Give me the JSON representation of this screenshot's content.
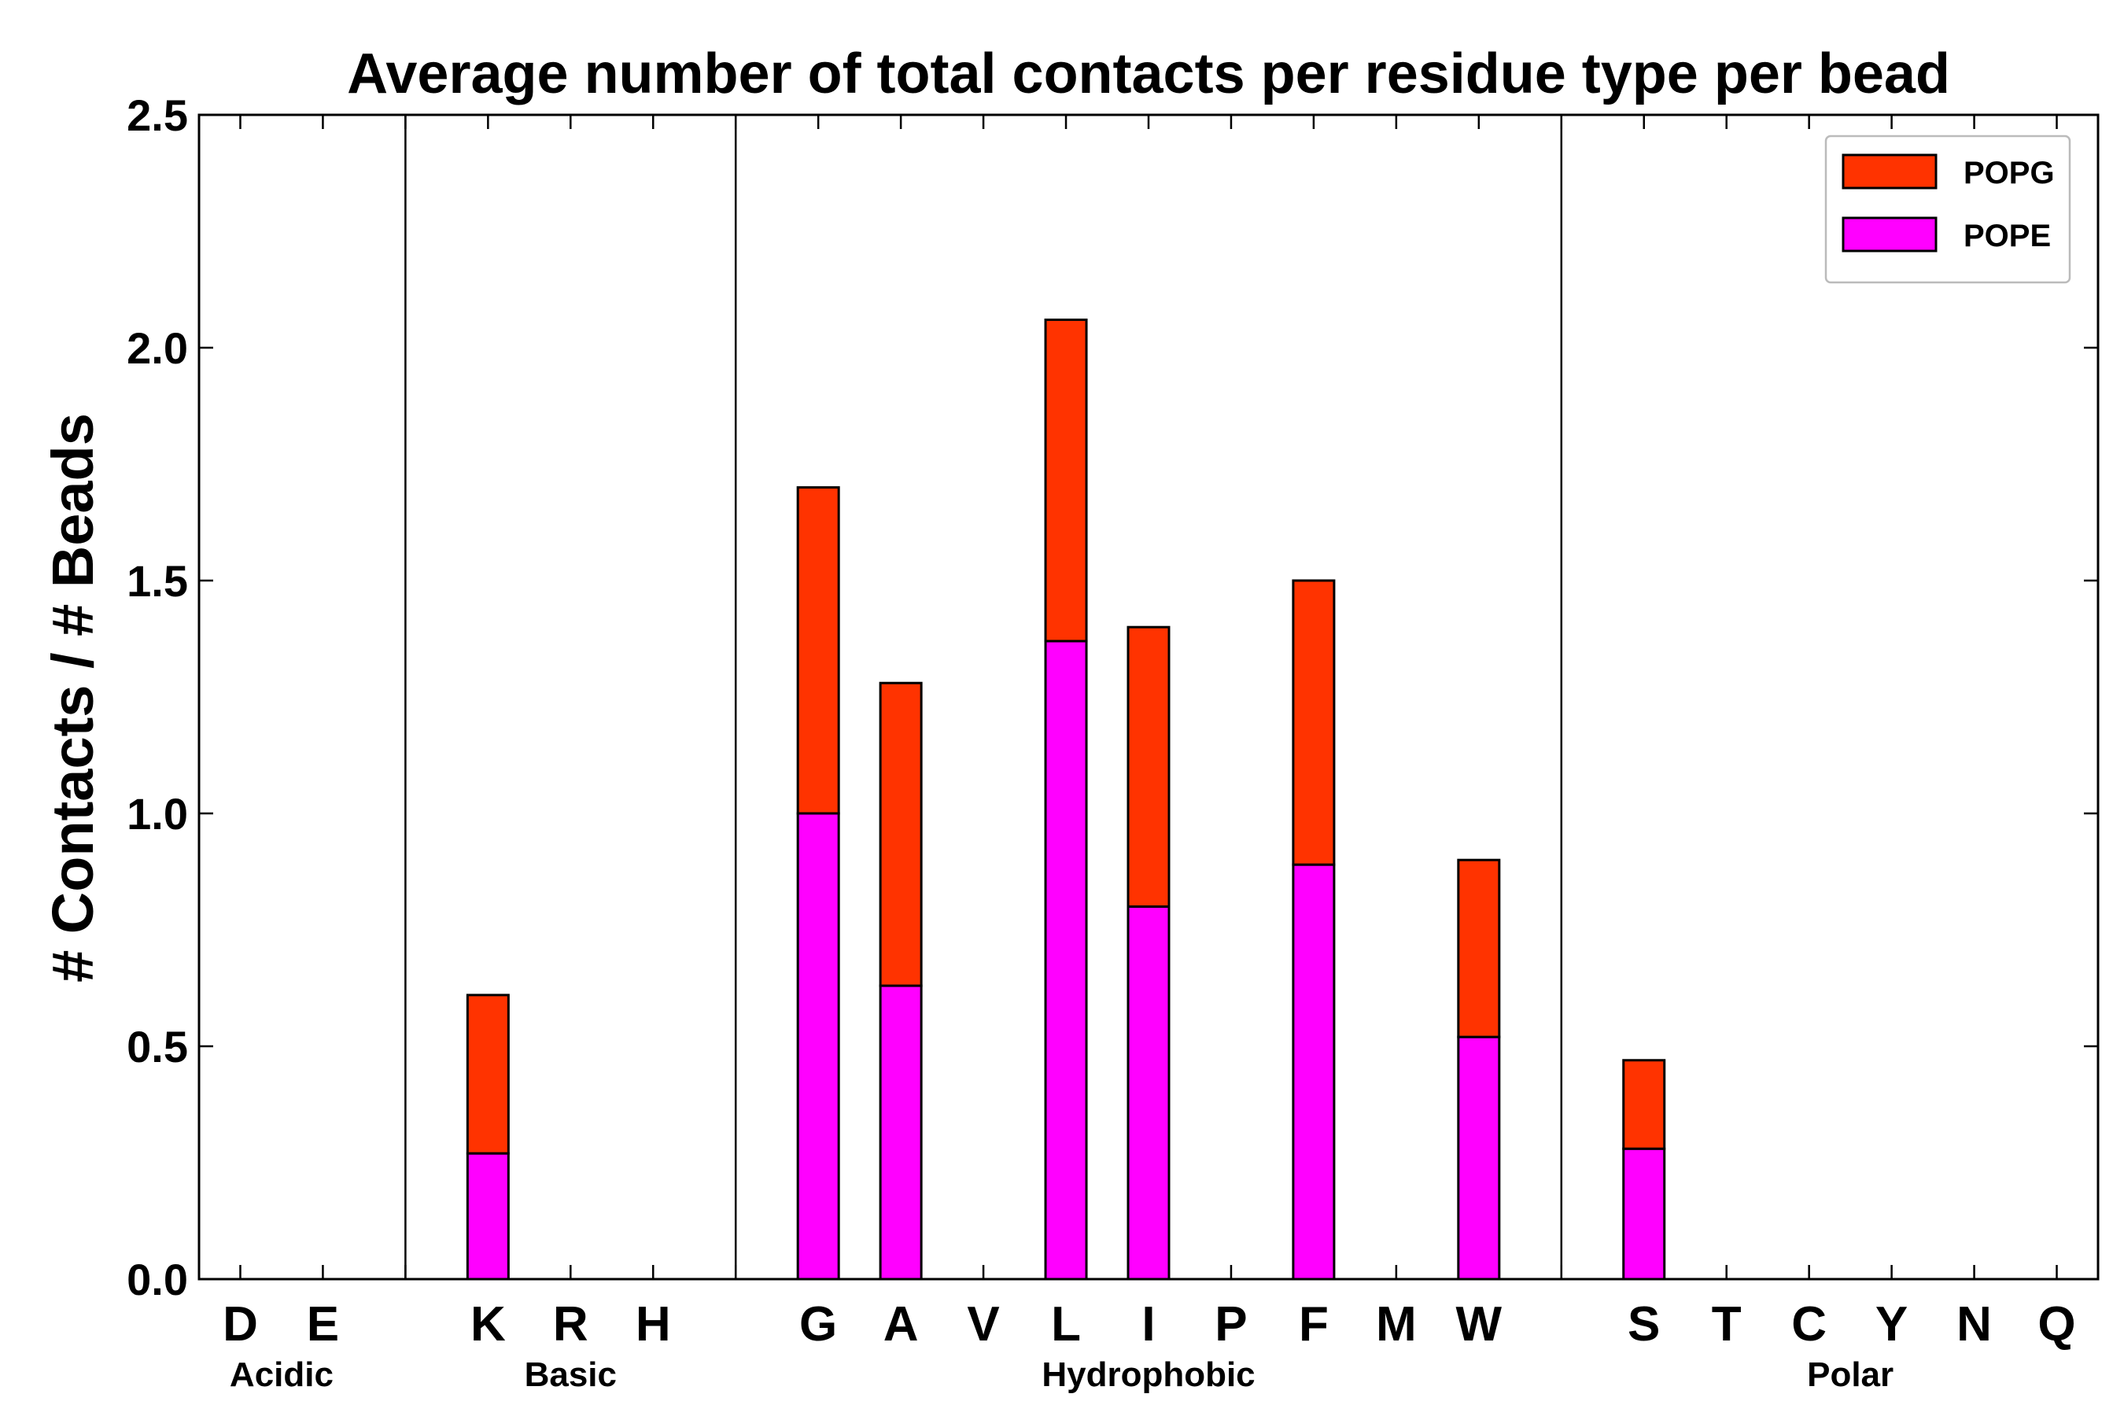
{
  "chart_data": {
    "type": "bar",
    "stacked": true,
    "title": "Average number of total contacts per residue type per bead",
    "xlabel": "",
    "ylabel": "# Contacts / # Beads",
    "ylim": [
      0,
      2.5
    ],
    "yticks": [
      "0.0",
      "0.5",
      "1.0",
      "1.5",
      "2.0",
      "2.5"
    ],
    "categories": [
      "D",
      "E",
      "",
      "K",
      "R",
      "H",
      "",
      "G",
      "A",
      "V",
      "L",
      "I",
      "P",
      "F",
      "M",
      "W",
      "",
      "S",
      "T",
      "C",
      "Y",
      "N",
      "Q"
    ],
    "groups": [
      {
        "label": "Acidic",
        "start": 0,
        "end": 1
      },
      {
        "label": "Basic",
        "start": 3,
        "end": 5
      },
      {
        "label": "Hydrophobic",
        "start": 7,
        "end": 15
      },
      {
        "label": "Polar",
        "start": 17,
        "end": 22
      }
    ],
    "series": [
      {
        "name": "POPE",
        "color": "#ff00ff",
        "values": [
          0,
          0,
          0,
          0.27,
          0,
          0,
          0,
          1.0,
          0.63,
          0,
          1.37,
          0.8,
          0,
          0.89,
          0,
          0.52,
          0,
          0.28,
          0,
          0,
          0,
          0,
          0
        ]
      },
      {
        "name": "POPG",
        "color": "#ff3300",
        "values": [
          0,
          0,
          0,
          0.34,
          0,
          0,
          0,
          0.7,
          0.65,
          0,
          0.69,
          0.6,
          0,
          0.61,
          0,
          0.38,
          0,
          0.19,
          0,
          0,
          0,
          0,
          0
        ]
      }
    ],
    "legend": {
      "position": "top-right",
      "order": [
        "POPG",
        "POPE"
      ]
    },
    "grid": false
  }
}
